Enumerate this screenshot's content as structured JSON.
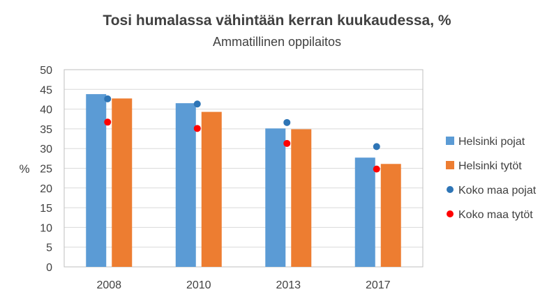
{
  "chart_data": {
    "type": "bar",
    "title": "Tosi humalassa vähintään kerran kuukaudessa, %",
    "subtitle": "Ammatillinen oppilaitos",
    "xlabel": "",
    "ylabel": "%",
    "ylim": [
      0,
      50
    ],
    "yticks": [
      "0",
      "5",
      "10",
      "15",
      "20",
      "25",
      "30",
      "35",
      "40",
      "45",
      "50"
    ],
    "categories": [
      "2008",
      "2010",
      "2013",
      "2017"
    ],
    "bar_series": [
      {
        "name": "Helsinki pojat",
        "color": "#5B9BD5",
        "values": [
          43.8,
          41.5,
          35.1,
          27.7
        ]
      },
      {
        "name": "Helsinki tytöt",
        "color": "#ED7D31",
        "values": [
          42.7,
          39.3,
          34.9,
          26.1
        ]
      }
    ],
    "point_series": [
      {
        "name": "Koko maa pojat",
        "color": "#2E75B6",
        "values": [
          42.6,
          41.3,
          36.6,
          30.5
        ]
      },
      {
        "name": "Koko maa tytöt",
        "color": "#FF0000",
        "values": [
          36.7,
          35.1,
          31.3,
          24.8
        ]
      }
    ],
    "grid": true,
    "legend_position": "right"
  }
}
